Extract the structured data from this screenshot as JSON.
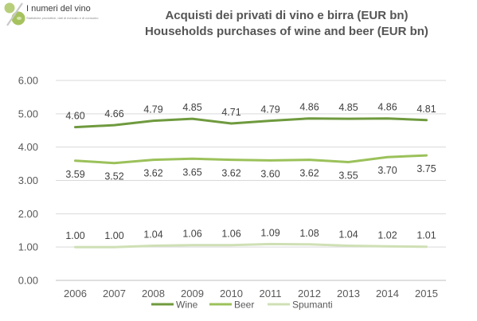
{
  "brand": {
    "name": "I numeri del vino",
    "tagline": "Statistiche produttive, dati di mercato e di consumo"
  },
  "chart_data": {
    "type": "line",
    "title": "Acquisti dei privati di vino e birra (EUR bn)",
    "subtitle": "Households purchases of wine and beer (EUR bn)",
    "x": [
      2006,
      2007,
      2008,
      2009,
      2010,
      2011,
      2012,
      2013,
      2014,
      2015
    ],
    "ylim": [
      0,
      6
    ],
    "yticks": [
      "0.00",
      "1.00",
      "2.00",
      "3.00",
      "4.00",
      "5.00",
      "6.00"
    ],
    "grid": true,
    "legend_position": "bottom",
    "series": [
      {
        "name": "Wine",
        "color": "#6f9a3e",
        "label_side": "above",
        "values": [
          4.6,
          4.66,
          4.79,
          4.85,
          4.71,
          4.79,
          4.86,
          4.85,
          4.86,
          4.81
        ],
        "labels": [
          "4.60",
          "4.66",
          "4.79",
          "4.85",
          "4.71",
          "4.79",
          "4.86",
          "4.85",
          "4.86",
          "4.81"
        ]
      },
      {
        "name": "Beer",
        "color": "#9bc15a",
        "label_side": "below",
        "values": [
          3.59,
          3.52,
          3.62,
          3.65,
          3.62,
          3.6,
          3.62,
          3.55,
          3.7,
          3.75
        ],
        "labels": [
          "3.59",
          "3.52",
          "3.62",
          "3.65",
          "3.62",
          "3.60",
          "3.62",
          "3.55",
          "3.70",
          "3.75"
        ]
      },
      {
        "name": "Spumanti",
        "color": "#cfe0b5",
        "label_side": "above",
        "values": [
          1.0,
          1.0,
          1.04,
          1.06,
          1.06,
          1.09,
          1.08,
          1.04,
          1.02,
          1.01
        ],
        "labels": [
          "1.00",
          "1.00",
          "1.04",
          "1.06",
          "1.06",
          "1.09",
          "1.08",
          "1.04",
          "1.02",
          "1.01"
        ]
      }
    ]
  }
}
